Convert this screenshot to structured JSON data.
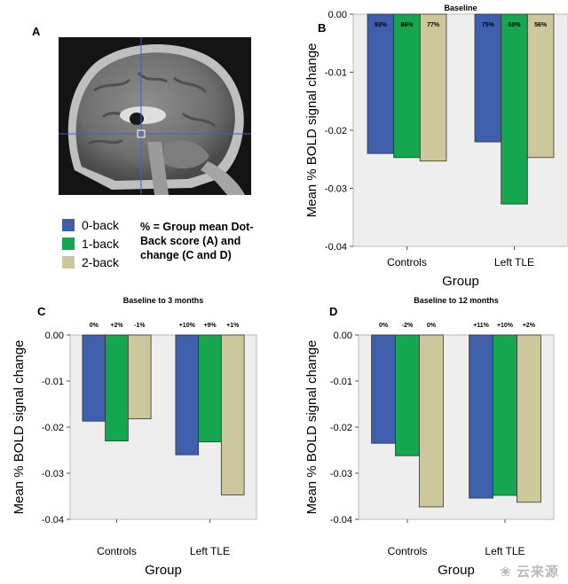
{
  "figure": {
    "letters": {
      "a": "A",
      "b": "B",
      "c": "C",
      "d": "D"
    },
    "legend": {
      "items": [
        {
          "label": "0-back",
          "color": "#3f5fad"
        },
        {
          "label": "1-back",
          "color": "#15a650"
        },
        {
          "label": "2-back",
          "color": "#cdc89b"
        }
      ],
      "note": "% = Group mean  Dot-Back score (A) and change (C and D)"
    },
    "watermark": "❀ 云来源"
  },
  "chart_data": [
    {
      "panel": "B",
      "type": "bar",
      "title": "Baseline",
      "xlabel": "Group",
      "ylabel": "Mean % BOLD signal change",
      "categories": [
        "Controls",
        "Left TLE"
      ],
      "ylim": [
        -0.04,
        0.0
      ],
      "yticks": [
        "0.00",
        "-0.01",
        "-0.02",
        "-0.03",
        "-0.04"
      ],
      "ytick_values": [
        0.0,
        -0.01,
        -0.02,
        -0.03,
        -0.04
      ],
      "series": [
        {
          "name": "0-back",
          "values": [
            -0.024,
            -0.022
          ],
          "labels": [
            "93%",
            "75%"
          ]
        },
        {
          "name": "1-back",
          "values": [
            -0.0247,
            -0.0327
          ],
          "labels": [
            "86%",
            "68%"
          ]
        },
        {
          "name": "2-back",
          "values": [
            -0.0253,
            -0.0247
          ],
          "labels": [
            "77%",
            "56%"
          ]
        }
      ],
      "grid": false,
      "plot_background": "#eeeeee"
    },
    {
      "panel": "C",
      "type": "bar",
      "title": "Baseline to 3 months",
      "xlabel": "Group",
      "ylabel": "Mean % BOLD signal change",
      "categories": [
        "Controls",
        "Left TLE"
      ],
      "ylim": [
        -0.04,
        0.0
      ],
      "yticks": [
        "0.00",
        "-0.01",
        "-0.02",
        "-0.03",
        "-0.04"
      ],
      "ytick_values": [
        0.0,
        -0.01,
        -0.02,
        -0.03,
        -0.04
      ],
      "series": [
        {
          "name": "0-back",
          "values": [
            -0.0187,
            -0.026
          ],
          "labels": [
            "0%",
            "+10%"
          ]
        },
        {
          "name": "1-back",
          "values": [
            -0.023,
            -0.0232
          ],
          "labels": [
            "+2%",
            "+9%"
          ]
        },
        {
          "name": "2-back",
          "values": [
            -0.0182,
            -0.0347
          ],
          "labels": [
            "-1%",
            "+1%"
          ]
        }
      ],
      "grid": false,
      "plot_background": "#eeeeee"
    },
    {
      "panel": "D",
      "type": "bar",
      "title": "Baseline to 12  months",
      "xlabel": "Group",
      "ylabel": "Mean % BOLD signal change",
      "categories": [
        "Controls",
        "Left TLE"
      ],
      "ylim": [
        -0.04,
        0.0
      ],
      "yticks": [
        "0.00",
        "-0.01",
        "-0.02",
        "-0.03",
        "-0.04"
      ],
      "ytick_values": [
        0.0,
        -0.01,
        -0.02,
        -0.03,
        -0.04
      ],
      "series": [
        {
          "name": "0-back",
          "values": [
            -0.0235,
            -0.0354
          ],
          "labels": [
            "0%",
            "+11%"
          ]
        },
        {
          "name": "1-back",
          "values": [
            -0.0262,
            -0.0348
          ],
          "labels": [
            "-2%",
            "+10%"
          ]
        },
        {
          "name": "2-back",
          "values": [
            -0.0373,
            -0.0363
          ],
          "labels": [
            "0%",
            "+2%"
          ]
        }
      ],
      "grid": false,
      "plot_background": "#eeeeee"
    }
  ]
}
